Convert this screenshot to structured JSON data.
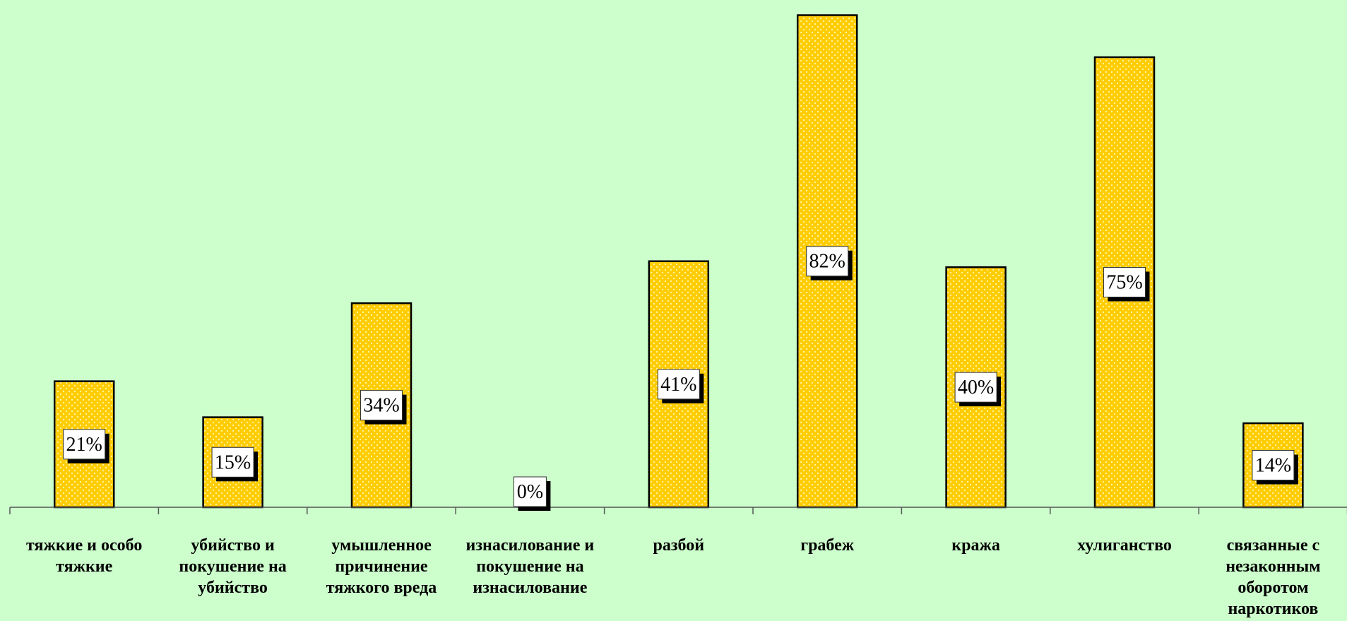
{
  "chart_data": {
    "type": "bar",
    "categories": [
      "тяжкие и особо тяжкие",
      "убийство и покушение на убийство",
      "умышленное причинение тяжкого вреда",
      "изнасилование и покушение на изнасилование",
      "разбой",
      "грабеж",
      "кража",
      "хулиганство",
      "связанные с незаконным оборотом наркотиков"
    ],
    "values": [
      21,
      15,
      34,
      0,
      41,
      82,
      40,
      75,
      14
    ],
    "data_labels": [
      "21%",
      "15%",
      "34%",
      "0%",
      "41%",
      "82%",
      "40%",
      "75%",
      "14%"
    ],
    "value_unit": "%",
    "title": "",
    "xlabel": "",
    "ylabel": "",
    "ylim": [
      0,
      83
    ],
    "grid": false,
    "legend": "none",
    "colors": {
      "background": "#ccffcc",
      "bar_fill": "#ffcc00",
      "bar_dots": "#fff2a0",
      "bar_outline": "#000000",
      "label_box": "#ffffff",
      "label_shadow": "#000000"
    }
  }
}
